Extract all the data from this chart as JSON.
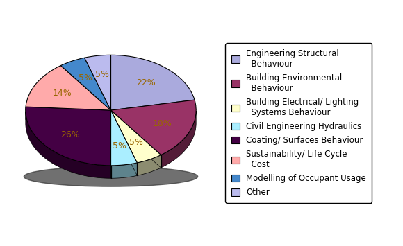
{
  "labels": [
    "Engineering Structural\nBehaviour",
    "Building Environmental\nBehaviour",
    "Building Electrical/ Lighting\nSystems Behaviour",
    "Civil Engineering Hydraulics",
    "Coating/ Surfaces Behaviour",
    "Sustainability/ Life Cycle\nCost",
    "Modelling of Occupant Usage",
    "Other"
  ],
  "legend_labels": [
    "Engineering Structural\n  Behaviour",
    "Building Environmental\n  Behaviour",
    "Building Electrical/ Lighting\n  Systems Behaviour",
    "Civil Engineering Hydraulics",
    "Coating/ Surfaces Behaviour",
    "Sustainability/ Life Cycle\n  Cost",
    "Modelling of Occupant Usage",
    "Other"
  ],
  "values": [
    22,
    18,
    5,
    5,
    26,
    14,
    5,
    5
  ],
  "colors": [
    "#aaaadd",
    "#993366",
    "#ffffcc",
    "#aaeeff",
    "#440044",
    "#ffaaaa",
    "#4488cc",
    "#bbbbee"
  ],
  "pct_labels": [
    "22%",
    "18%",
    "5%",
    "5%",
    "26%",
    "14%",
    "5%",
    "5%"
  ],
  "startangle": 90,
  "legend_fontsize": 8.5,
  "pct_fontsize": 9,
  "pct_color": "#996600"
}
